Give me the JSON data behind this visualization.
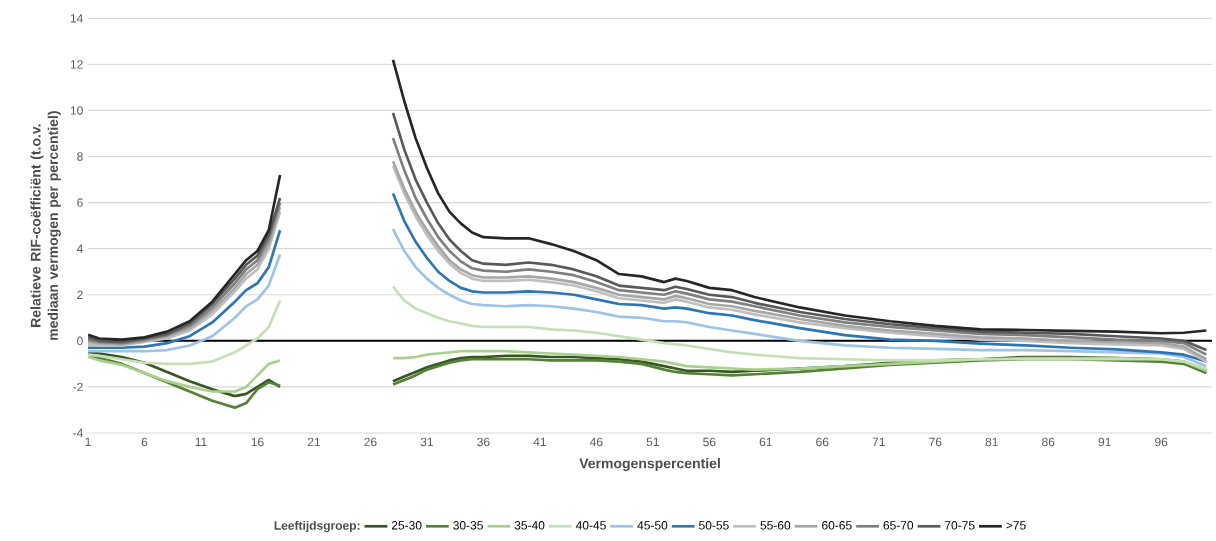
{
  "chart_data": {
    "type": "line",
    "xlabel": "Vermogenspercentiel",
    "ylabel": "Relatieve RIF-coëfficiënt (t.o.v. mediaan vermogen per percentiel)",
    "legend_title": "Leeftijdsgroep:",
    "x": [
      1,
      2,
      4,
      6,
      8,
      10,
      12,
      14,
      15,
      16,
      17,
      18,
      23,
      28,
      29,
      30,
      31,
      32,
      33,
      34,
      35,
      36,
      38,
      40,
      42,
      44,
      46,
      48,
      50,
      52,
      53,
      54,
      56,
      58,
      60,
      64,
      68,
      72,
      76,
      80,
      84,
      88,
      92,
      96,
      98,
      100
    ],
    "xlim": [
      1,
      100.5
    ],
    "xticks": [
      1,
      6,
      11,
      16,
      21,
      26,
      31,
      36,
      41,
      46,
      51,
      56,
      61,
      66,
      71,
      76,
      81,
      86,
      91,
      96
    ],
    "ylim": [
      -4,
      14
    ],
    "yticks": [
      -4,
      -2,
      0,
      2,
      4,
      6,
      8,
      10,
      12,
      14
    ],
    "grid": "y",
    "legend": "bottom",
    "marker": "none",
    "line_style": "solid",
    "ref_lines": [
      {
        "axis": "y",
        "value": 0,
        "color": "#000000"
      }
    ],
    "series": [
      {
        "name": "25-30",
        "color": "#375623",
        "values": [
          -0.5,
          -0.55,
          -0.7,
          -0.95,
          -1.35,
          -1.75,
          -2.1,
          -2.4,
          -2.3,
          -2.0,
          -1.7,
          -2.0,
          null,
          -1.75,
          -1.55,
          -1.35,
          -1.15,
          -1.0,
          -0.85,
          -0.75,
          -0.7,
          -0.7,
          -0.65,
          -0.65,
          -0.7,
          -0.7,
          -0.75,
          -0.8,
          -0.9,
          -1.1,
          -1.2,
          -1.3,
          -1.3,
          -1.35,
          -1.3,
          -1.2,
          -1.1,
          -0.95,
          -0.85,
          -0.8,
          -0.7,
          -0.7,
          -0.75,
          -0.8,
          -0.9,
          -1.3
        ]
      },
      {
        "name": "30-35",
        "color": "#548235",
        "values": [
          -0.6,
          -0.75,
          -1.0,
          -1.4,
          -1.8,
          -2.2,
          -2.6,
          -2.9,
          -2.7,
          -2.1,
          -1.8,
          -1.95,
          null,
          -1.9,
          -1.7,
          -1.5,
          -1.25,
          -1.1,
          -0.95,
          -0.85,
          -0.8,
          -0.8,
          -0.8,
          -0.8,
          -0.85,
          -0.85,
          -0.85,
          -0.9,
          -1.0,
          -1.25,
          -1.35,
          -1.4,
          -1.45,
          -1.5,
          -1.45,
          -1.35,
          -1.2,
          -1.05,
          -0.95,
          -0.85,
          -0.8,
          -0.8,
          -0.85,
          -0.9,
          -1.0,
          -1.4
        ]
      },
      {
        "name": "35-40",
        "color": "#a9d18e",
        "values": [
          -0.7,
          -0.85,
          -1.05,
          -1.4,
          -1.75,
          -2.0,
          -2.2,
          -2.2,
          -2.0,
          -1.5,
          -1.0,
          -0.85,
          null,
          -0.75,
          -0.75,
          -0.7,
          -0.6,
          -0.55,
          -0.5,
          -0.45,
          -0.45,
          -0.45,
          -0.45,
          -0.5,
          -0.55,
          -0.6,
          -0.65,
          -0.7,
          -0.8,
          -0.9,
          -1.0,
          -1.1,
          -1.15,
          -1.2,
          -1.25,
          -1.2,
          -1.1,
          -1.0,
          -0.9,
          -0.8,
          -0.75,
          -0.75,
          -0.75,
          -0.8,
          -0.9,
          -1.3
        ]
      },
      {
        "name": "40-45",
        "color": "#c5e0b4",
        "values": [
          -0.6,
          -0.65,
          -0.8,
          -0.95,
          -1.0,
          -1.0,
          -0.9,
          -0.5,
          -0.2,
          0.1,
          0.6,
          1.75,
          null,
          2.35,
          1.75,
          1.4,
          1.2,
          1.0,
          0.85,
          0.75,
          0.65,
          0.6,
          0.6,
          0.6,
          0.5,
          0.45,
          0.35,
          0.2,
          0.05,
          -0.1,
          -0.15,
          -0.2,
          -0.35,
          -0.5,
          -0.6,
          -0.75,
          -0.8,
          -0.85,
          -0.85,
          -0.8,
          -0.8,
          -0.8,
          -0.8,
          -0.8,
          -0.9,
          -1.2
        ]
      },
      {
        "name": "45-50",
        "color": "#9dc3e6",
        "values": [
          -0.45,
          -0.45,
          -0.45,
          -0.45,
          -0.4,
          -0.2,
          0.2,
          1.0,
          1.5,
          1.8,
          2.4,
          3.75,
          null,
          4.85,
          3.9,
          3.2,
          2.7,
          2.3,
          2.0,
          1.75,
          1.6,
          1.55,
          1.5,
          1.55,
          1.5,
          1.4,
          1.25,
          1.05,
          1.0,
          0.85,
          0.85,
          0.8,
          0.6,
          0.45,
          0.3,
          0.0,
          -0.2,
          -0.3,
          -0.35,
          -0.4,
          -0.4,
          -0.45,
          -0.5,
          -0.55,
          -0.7,
          -1.1
        ]
      },
      {
        "name": "50-55",
        "color": "#2e75b6",
        "values": [
          -0.3,
          -0.3,
          -0.3,
          -0.25,
          -0.1,
          0.2,
          0.8,
          1.7,
          2.2,
          2.5,
          3.2,
          4.8,
          null,
          6.4,
          5.2,
          4.3,
          3.6,
          3.0,
          2.6,
          2.3,
          2.15,
          2.1,
          2.1,
          2.15,
          2.1,
          2.0,
          1.8,
          1.6,
          1.55,
          1.4,
          1.45,
          1.4,
          1.2,
          1.1,
          0.9,
          0.55,
          0.25,
          0.05,
          0.0,
          -0.12,
          -0.2,
          -0.3,
          -0.37,
          -0.5,
          -0.6,
          -0.9
        ]
      },
      {
        "name": "55-60",
        "color": "#bfbfbf",
        "values": [
          -0.15,
          -0.2,
          -0.2,
          -0.05,
          0.1,
          0.45,
          1.15,
          2.15,
          2.7,
          3.1,
          4.0,
          5.6,
          null,
          7.6,
          6.4,
          5.4,
          4.6,
          3.9,
          3.35,
          2.95,
          2.7,
          2.6,
          2.6,
          2.65,
          2.55,
          2.4,
          2.15,
          1.85,
          1.75,
          1.65,
          1.8,
          1.7,
          1.45,
          1.35,
          1.15,
          0.8,
          0.55,
          0.35,
          0.2,
          0.05,
          0.0,
          -0.1,
          -0.15,
          -0.2,
          -0.35,
          -0.9
        ]
      },
      {
        "name": "60-65",
        "color": "#a6a6a6",
        "values": [
          -0.05,
          -0.1,
          -0.15,
          0.0,
          0.2,
          0.55,
          1.3,
          2.3,
          2.9,
          3.3,
          4.2,
          5.8,
          null,
          7.8,
          6.6,
          5.6,
          4.8,
          4.1,
          3.5,
          3.1,
          2.85,
          2.75,
          2.75,
          2.8,
          2.7,
          2.55,
          2.3,
          2.0,
          1.9,
          1.8,
          1.95,
          1.85,
          1.6,
          1.5,
          1.3,
          0.95,
          0.65,
          0.45,
          0.3,
          0.15,
          0.1,
          0.0,
          -0.05,
          -0.1,
          -0.25,
          -0.8
        ]
      },
      {
        "name": "65-70",
        "color": "#7f7f7f",
        "values": [
          0.05,
          -0.05,
          -0.1,
          0.05,
          0.25,
          0.65,
          1.45,
          2.5,
          3.1,
          3.5,
          4.4,
          6.0,
          null,
          8.8,
          7.4,
          6.2,
          5.3,
          4.5,
          3.9,
          3.45,
          3.15,
          3.05,
          3.0,
          3.1,
          3.0,
          2.85,
          2.55,
          2.2,
          2.1,
          2.0,
          2.15,
          2.05,
          1.8,
          1.7,
          1.5,
          1.1,
          0.8,
          0.6,
          0.45,
          0.3,
          0.25,
          0.15,
          0.05,
          0.0,
          -0.1,
          -0.6
        ]
      },
      {
        "name": "70-75",
        "color": "#595959",
        "values": [
          0.15,
          0.0,
          -0.05,
          0.1,
          0.3,
          0.75,
          1.6,
          2.7,
          3.3,
          3.7,
          4.6,
          6.2,
          null,
          9.9,
          8.3,
          7.0,
          6.0,
          5.1,
          4.4,
          3.9,
          3.5,
          3.35,
          3.3,
          3.4,
          3.3,
          3.1,
          2.8,
          2.4,
          2.3,
          2.2,
          2.35,
          2.25,
          2.0,
          1.9,
          1.65,
          1.25,
          0.95,
          0.72,
          0.55,
          0.4,
          0.35,
          0.3,
          0.2,
          0.1,
          0.0,
          -0.4
        ]
      },
      {
        "name": ">75",
        "color": "#262626",
        "values": [
          0.26,
          0.1,
          0.05,
          0.15,
          0.4,
          0.85,
          1.7,
          2.9,
          3.5,
          3.9,
          4.8,
          7.2,
          null,
          12.2,
          10.4,
          8.8,
          7.5,
          6.4,
          5.6,
          5.1,
          4.7,
          4.5,
          4.45,
          4.45,
          4.2,
          3.9,
          3.5,
          2.9,
          2.8,
          2.55,
          2.7,
          2.6,
          2.3,
          2.2,
          1.9,
          1.45,
          1.1,
          0.85,
          0.65,
          0.5,
          0.47,
          0.43,
          0.4,
          0.33,
          0.35,
          0.45
        ]
      }
    ]
  }
}
